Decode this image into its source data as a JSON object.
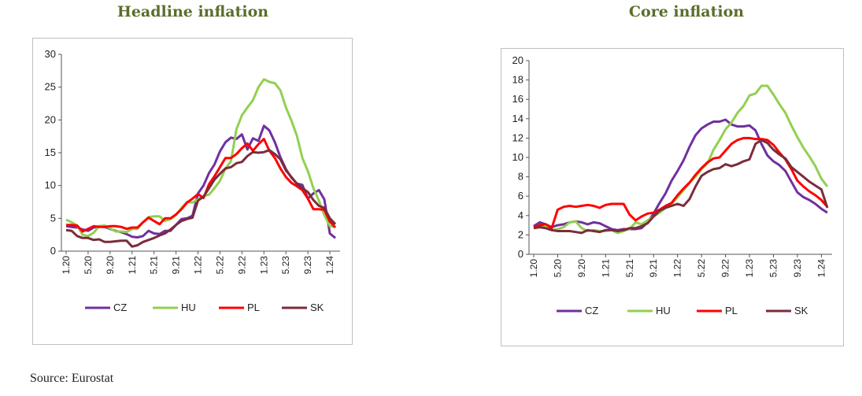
{
  "source": "Source: Eurostat",
  "colors": {
    "CZ": "#7030a0",
    "HU": "#92d050",
    "PL": "#ff0000",
    "SK": "#7b2c3a"
  },
  "chart_data": [
    {
      "type": "line",
      "title": "Headline inflation",
      "ylim": [
        0,
        30
      ],
      "yticks": [
        "0",
        "5",
        "10",
        "15",
        "20",
        "25",
        "30"
      ],
      "xticks": [
        "1.20",
        "5.20",
        "9.20",
        "1.21",
        "5.21",
        "9.21",
        "1.22",
        "5.22",
        "9.22",
        "1.23",
        "5.23",
        "9.23",
        "1.24"
      ],
      "x": [
        "1.20",
        "2.20",
        "3.20",
        "4.20",
        "5.20",
        "6.20",
        "7.20",
        "8.20",
        "9.20",
        "10.20",
        "11.20",
        "12.20",
        "1.21",
        "2.21",
        "3.21",
        "4.21",
        "5.21",
        "6.21",
        "7.21",
        "8.21",
        "9.21",
        "10.21",
        "11.21",
        "12.21",
        "1.22",
        "2.22",
        "3.22",
        "4.22",
        "5.22",
        "6.22",
        "7.22",
        "8.22",
        "9.22",
        "10.22",
        "11.22",
        "12.22",
        "1.23",
        "2.23",
        "3.23",
        "4.23",
        "5.23",
        "6.23",
        "7.23",
        "8.23",
        "9.23",
        "10.23",
        "11.23",
        "12.23",
        "1.24",
        "2.24"
      ],
      "grid": false,
      "legend": "bottom",
      "series": [
        {
          "name": "CZ",
          "values": [
            3.8,
            3.7,
            3.6,
            3.3,
            3.1,
            3.6,
            3.8,
            3.7,
            3.4,
            3.1,
            2.9,
            2.6,
            2.2,
            2.1,
            2.3,
            3.1,
            2.7,
            2.6,
            3.1,
            3.1,
            4.0,
            4.9,
            5.0,
            5.4,
            8.8,
            10.0,
            11.9,
            13.2,
            15.2,
            16.6,
            17.3,
            17.1,
            17.8,
            15.5,
            17.2,
            16.8,
            19.1,
            18.4,
            16.6,
            14.3,
            12.5,
            11.2,
            10.3,
            10.1,
            8.0,
            8.8,
            9.3,
            7.9,
            2.7,
            2.0
          ]
        },
        {
          "name": "HU",
          "values": [
            4.8,
            4.4,
            3.9,
            2.5,
            2.3,
            2.8,
            3.8,
            3.9,
            3.5,
            3.0,
            3.0,
            2.9,
            3.4,
            3.4,
            4.4,
            5.2,
            5.3,
            5.3,
            4.6,
            4.9,
            5.5,
            6.6,
            7.5,
            7.4,
            7.9,
            8.4,
            8.6,
            9.6,
            10.7,
            12.6,
            13.7,
            18.6,
            20.7,
            21.9,
            23.0,
            25.0,
            26.2,
            25.8,
            25.6,
            24.5,
            21.9,
            19.9,
            17.6,
            14.2,
            12.2,
            9.6,
            7.7,
            5.5,
            3.8,
            3.7
          ]
        },
        {
          "name": "PL",
          "values": [
            4.0,
            4.0,
            3.9,
            3.0,
            3.4,
            3.8,
            3.7,
            3.7,
            3.8,
            3.8,
            3.7,
            3.4,
            3.6,
            3.6,
            4.4,
            5.1,
            4.6,
            4.1,
            5.0,
            5.0,
            5.6,
            6.4,
            7.4,
            8.0,
            8.7,
            8.1,
            10.2,
            11.4,
            12.8,
            14.2,
            14.2,
            14.8,
            15.7,
            16.4,
            15.3,
            16.3,
            17.1,
            15.3,
            14.2,
            12.6,
            11.3,
            10.4,
            9.9,
            9.3,
            8.0,
            6.4,
            6.4,
            6.3,
            4.5,
            3.6
          ]
        },
        {
          "name": "SK",
          "values": [
            3.2,
            3.1,
            2.3,
            2.0,
            2.0,
            1.7,
            1.8,
            1.4,
            1.4,
            1.5,
            1.6,
            1.6,
            0.7,
            0.9,
            1.4,
            1.7,
            2.0,
            2.4,
            2.7,
            3.3,
            4.0,
            4.6,
            4.9,
            5.1,
            7.7,
            8.3,
            9.6,
            10.9,
            11.8,
            12.6,
            12.8,
            13.4,
            13.6,
            14.5,
            15.1,
            15.0,
            15.1,
            15.4,
            14.8,
            14.0,
            12.3,
            11.3,
            10.3,
            9.6,
            9.0,
            7.8,
            6.9,
            6.6,
            5.0,
            4.1
          ]
        }
      ]
    },
    {
      "type": "line",
      "title": "Core inflation",
      "ylim": [
        0,
        20
      ],
      "yticks": [
        "0",
        "2",
        "4",
        "6",
        "8",
        "10",
        "12",
        "14",
        "16",
        "18",
        "20"
      ],
      "xticks": [
        "1.20",
        "5.20",
        "9.20",
        "1.21",
        "5.21",
        "9.21",
        "1.22",
        "5.22",
        "9.22",
        "1.23",
        "5.23",
        "9.23",
        "1.24"
      ],
      "x": [
        "1.20",
        "2.20",
        "3.20",
        "4.20",
        "5.20",
        "6.20",
        "7.20",
        "8.20",
        "9.20",
        "10.20",
        "11.20",
        "12.20",
        "1.21",
        "2.21",
        "3.21",
        "4.21",
        "5.21",
        "6.21",
        "7.21",
        "8.21",
        "9.21",
        "10.21",
        "11.21",
        "12.21",
        "1.22",
        "2.22",
        "3.22",
        "4.22",
        "5.22",
        "6.22",
        "7.22",
        "8.22",
        "9.22",
        "10.22",
        "11.22",
        "12.22",
        "1.23",
        "2.23",
        "3.23",
        "4.23",
        "5.23",
        "6.23",
        "7.23",
        "8.23",
        "9.23",
        "10.23",
        "11.23",
        "12.23",
        "1.24",
        "2.24"
      ],
      "grid": false,
      "legend": "bottom",
      "series": [
        {
          "name": "CZ",
          "values": [
            2.9,
            3.3,
            3.1,
            2.8,
            3.0,
            3.1,
            3.3,
            3.4,
            3.3,
            3.1,
            3.3,
            3.2,
            2.9,
            2.6,
            2.5,
            2.6,
            2.6,
            2.6,
            2.7,
            3.3,
            4.2,
            5.3,
            6.3,
            7.6,
            8.6,
            9.7,
            11.1,
            12.3,
            13.0,
            13.4,
            13.7,
            13.7,
            13.9,
            13.4,
            13.2,
            13.2,
            13.3,
            12.8,
            11.4,
            10.2,
            9.6,
            9.2,
            8.6,
            7.5,
            6.4,
            5.9,
            5.6,
            5.2,
            4.7,
            4.3
          ]
        },
        {
          "name": "HU",
          "values": [
            2.7,
            2.9,
            2.8,
            2.5,
            2.6,
            2.8,
            3.3,
            3.4,
            2.7,
            2.4,
            2.5,
            2.4,
            2.4,
            2.5,
            2.2,
            2.4,
            2.6,
            3.3,
            3.1,
            3.5,
            3.9,
            4.3,
            4.8,
            5.2,
            5.9,
            6.6,
            7.4,
            8.0,
            8.8,
            9.4,
            10.8,
            11.8,
            12.9,
            13.6,
            14.6,
            15.3,
            16.4,
            16.6,
            17.4,
            17.4,
            16.5,
            15.5,
            14.6,
            13.3,
            12.1,
            11.0,
            10.1,
            9.1,
            7.8,
            7.0
          ]
        },
        {
          "name": "PL",
          "values": [
            2.8,
            3.0,
            3.1,
            2.7,
            4.6,
            4.9,
            5.0,
            4.9,
            5.0,
            5.1,
            5.0,
            4.8,
            5.1,
            5.2,
            5.2,
            5.2,
            4.1,
            3.5,
            3.9,
            4.2,
            4.3,
            4.6,
            5.0,
            5.3,
            6.1,
            6.8,
            7.4,
            8.2,
            8.9,
            9.5,
            9.9,
            10.0,
            10.7,
            11.4,
            11.8,
            12.0,
            12.0,
            11.9,
            11.9,
            11.8,
            11.3,
            10.5,
            9.8,
            8.8,
            7.6,
            7.0,
            6.5,
            6.1,
            5.6,
            4.9
          ]
        },
        {
          "name": "SK",
          "values": [
            2.7,
            2.8,
            2.7,
            2.5,
            2.4,
            2.4,
            2.4,
            2.3,
            2.2,
            2.5,
            2.4,
            2.3,
            2.5,
            2.5,
            2.4,
            2.5,
            2.7,
            2.7,
            2.9,
            3.2,
            3.9,
            4.5,
            4.8,
            5.0,
            5.2,
            5.0,
            5.7,
            7.0,
            8.1,
            8.5,
            8.8,
            8.9,
            9.3,
            9.1,
            9.3,
            9.6,
            9.8,
            11.4,
            11.8,
            11.5,
            10.8,
            10.3,
            9.9,
            9.0,
            8.5,
            8.0,
            7.5,
            7.1,
            6.7,
            4.8
          ]
        }
      ]
    }
  ]
}
